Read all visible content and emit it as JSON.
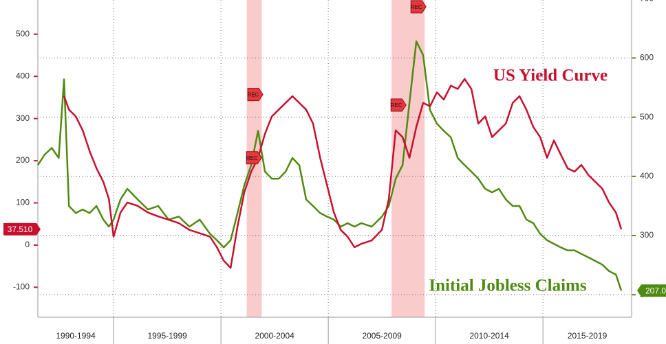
{
  "chart_data": {
    "type": "line",
    "x": [
      1991.47,
      1991.79,
      1992.12,
      1992.44,
      1992.69,
      1992.92,
      1993.24,
      1993.56,
      1993.88,
      1994.2,
      1994.52,
      1994.78,
      1995,
      1995.32,
      1995.64,
      1996.12,
      1996.6,
      1997.08,
      1997.56,
      1998.04,
      1998.53,
      1999.01,
      1999.49,
      1999.81,
      2000.13,
      2000.45,
      2000.77,
      2001.09,
      2001.41,
      2001.73,
      2002.05,
      2002.37,
      2002.69,
      2003.01,
      2003.33,
      2003.65,
      2003.97,
      2004.29,
      2004.62,
      2004.94,
      2005.26,
      2005.58,
      2005.9,
      2006.22,
      2006.54,
      2007.02,
      2007.5,
      2007.82,
      2008.14,
      2008.46,
      2008.78,
      2009.1,
      2009.42,
      2009.74,
      2010.06,
      2010.38,
      2010.71,
      2011.03,
      2011.35,
      2011.67,
      2011.99,
      2012.31,
      2012.63,
      2012.95,
      2013.27,
      2013.59,
      2013.91,
      2014.23,
      2014.55,
      2014.87,
      2015.19,
      2015.51,
      2015.83,
      2016.15,
      2016.47,
      2016.79,
      2017.12,
      2017.44,
      2017.76,
      2018.08,
      2018.4,
      2018.65
    ],
    "series": [
      {
        "name": "US Yield Curve",
        "color": "#c8102e",
        "axis": "y",
        "values": [
          null,
          null,
          null,
          null,
          353,
          321,
          305,
          272,
          223,
          182,
          150,
          109,
          20,
          77,
          101,
          93,
          77,
          68,
          60,
          52,
          36,
          28,
          20,
          -5,
          -37,
          -54,
          44,
          125,
          174,
          207,
          264,
          305,
          321,
          337,
          353,
          337,
          321,
          288,
          207,
          142,
          77,
          36,
          20,
          -5,
          3,
          11,
          36,
          109,
          272,
          256,
          207,
          280,
          337,
          329,
          362,
          345,
          378,
          370,
          394,
          370,
          288,
          305,
          256,
          272,
          288,
          337,
          353,
          321,
          280,
          256,
          207,
          248,
          215,
          182,
          174,
          190,
          166,
          150,
          134,
          101,
          77,
          37.51
        ]
      },
      {
        "name": "Initial Jobless Claims",
        "color": "#4f8a10",
        "axis": "y2",
        "values": [
          419,
          437,
          448,
          431,
          564,
          350,
          338,
          344,
          338,
          350,
          327,
          315,
          327,
          361,
          379,
          361,
          344,
          350,
          327,
          332,
          315,
          327,
          303,
          292,
          280,
          292,
          338,
          385,
          419,
          477,
          408,
          396,
          396,
          408,
          431,
          419,
          361,
          350,
          338,
          332,
          327,
          315,
          321,
          315,
          321,
          315,
          332,
          350,
          396,
          419,
          524,
          628,
          605,
          512,
          489,
          477,
          466,
          431,
          419,
          408,
          396,
          379,
          373,
          379,
          361,
          350,
          350,
          327,
          321,
          303,
          292,
          286,
          280,
          275,
          275,
          269,
          263,
          257,
          251,
          240,
          234,
          207
        ]
      }
    ],
    "xlim": [
      1991.47,
      2019.13
    ],
    "ylim": [
      -171,
      581
    ],
    "yticks": [
      -100,
      0,
      100,
      200,
      300,
      400,
      500
    ],
    "y2lim": [
      162,
      698
    ],
    "y2ticks": [
      200,
      300,
      400,
      500,
      600,
      700
    ],
    "periods": [
      {
        "label": "1990-1994",
        "start": 1990,
        "end": 1995
      },
      {
        "label": "1995-1999",
        "start": 1995,
        "end": 2000
      },
      {
        "label": "2000-2004",
        "start": 2000,
        "end": 2005
      },
      {
        "label": "2005-2009",
        "start": 2005,
        "end": 2010
      },
      {
        "label": "2010-2014",
        "start": 2010,
        "end": 2015
      },
      {
        "label": "2015-2019",
        "start": 2015,
        "end": 2020
      }
    ],
    "recessions": [
      [
        2001.2,
        2001.9
      ],
      [
        2007.95,
        2009.49
      ]
    ],
    "recession_flags": [
      {
        "label": "REC",
        "x": 2001.57,
        "y": 357
      },
      {
        "label": "REC",
        "x": 2001.51,
        "y": 207
      },
      {
        "label": "REC",
        "x": 2008.24,
        "y": 332
      },
      {
        "label": "REC",
        "x": 2009.17,
        "y": 565
      }
    ],
    "last_values": [
      {
        "value": 37.51,
        "label": "37.510",
        "axis": "y"
      },
      {
        "value": 207,
        "label": "207.0",
        "axis": "y2"
      }
    ]
  }
}
